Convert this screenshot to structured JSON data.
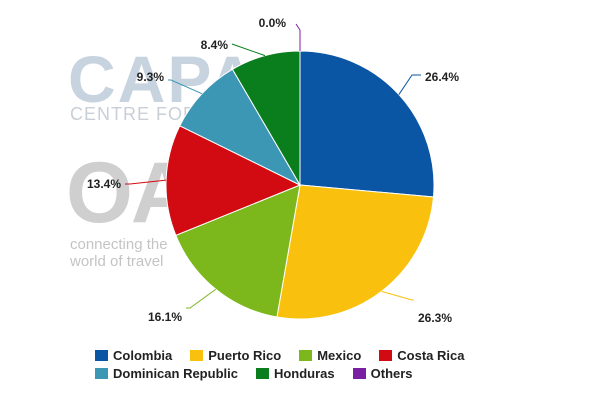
{
  "watermark": {
    "capa": "CAPA",
    "centre": "CENTRE FOR AVIATION",
    "oag": "OAG",
    "tagline_1": "connecting the",
    "tagline_2": "world of travel"
  },
  "chart_data": {
    "type": "pie",
    "slices": [
      {
        "label": "Colombia",
        "value": 26.4,
        "display": "26.4%",
        "color": "#0b56a4"
      },
      {
        "label": "Puerto Rico",
        "value": 26.3,
        "display": "26.3%",
        "color": "#f9c10e"
      },
      {
        "label": "Mexico",
        "value": 16.1,
        "display": "16.1%",
        "color": "#7cb71b"
      },
      {
        "label": "Costa Rica",
        "value": 13.4,
        "display": "13.4%",
        "color": "#d20a11"
      },
      {
        "label": "Dominican Republic",
        "value": 9.3,
        "display": "9.3%",
        "color": "#3c97b5"
      },
      {
        "label": "Honduras",
        "value": 8.4,
        "display": "8.4%",
        "color": "#0a7d1c"
      },
      {
        "label": "Others",
        "value": 0.0,
        "display": "0.0%",
        "color": "#7b1fa2"
      }
    ],
    "legend": [
      [
        "Colombia",
        "Puerto Rico",
        "Mexico",
        "Costa Rica"
      ],
      [
        "Dominican Republic",
        "Honduras",
        "Others"
      ]
    ],
    "legend_position": "bottom"
  }
}
